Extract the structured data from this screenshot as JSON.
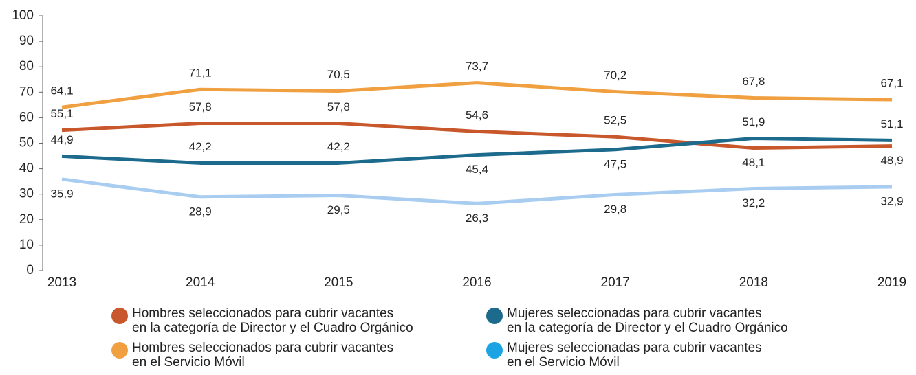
{
  "chart_data": {
    "type": "line",
    "categories": [
      "2013",
      "2014",
      "2015",
      "2016",
      "2017",
      "2018",
      "2019"
    ],
    "ylim": [
      0,
      100
    ],
    "yticks": [
      0,
      10,
      20,
      30,
      40,
      50,
      60,
      70,
      80,
      90,
      100
    ],
    "grid": false,
    "legend": "bottom",
    "series": [
      {
        "name": "Hombres seleccionados para cubrir vacantes\nen la categoría de Director y el Cuadro Orgánico",
        "color": "#c8582b",
        "values": [
          55.1,
          57.8,
          57.8,
          54.6,
          52.5,
          48.1,
          48.9
        ],
        "value_labels": [
          "55,1",
          "57,8",
          "57,8",
          "54,6",
          "52,5",
          "48,1",
          "48,9"
        ]
      },
      {
        "name": "Mujeres seleccionadas para cubrir vacantes\nen la categoría de Director y el Cuadro Orgánico",
        "color": "#1c6a8c",
        "values": [
          44.9,
          42.2,
          42.2,
          45.4,
          47.5,
          51.9,
          51.1
        ],
        "value_labels": [
          "44,9",
          "42,2",
          "42,2",
          "45,4",
          "47,5",
          "51,9",
          "51,1"
        ]
      },
      {
        "name": "Hombres seleccionados para cubrir vacantes\nen el Servicio Móvil",
        "color": "#f0a040",
        "values": [
          64.1,
          71.1,
          70.5,
          73.7,
          70.2,
          67.8,
          67.1
        ],
        "value_labels": [
          "64,1",
          "71,1",
          "70,5",
          "73,7",
          "70,2",
          "67,8",
          "67,1"
        ]
      },
      {
        "name": "Mujeres seleccionadas para cubrir vacantes\nen el Servicio Móvil",
        "color": "#a9cdf0",
        "legend_color": "#1ba3e3",
        "values": [
          35.9,
          28.9,
          29.5,
          26.3,
          29.8,
          32.2,
          32.9
        ],
        "value_labels": [
          "35,9",
          "28,9",
          "29,5",
          "26,3",
          "29,8",
          "32,2",
          "32,9"
        ]
      }
    ]
  }
}
